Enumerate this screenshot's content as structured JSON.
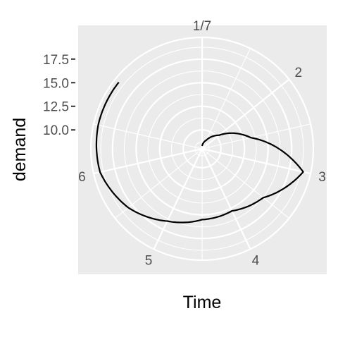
{
  "chart_data": {
    "type": "line",
    "coordinate_system": "polar",
    "title": "",
    "xlabel": "Time",
    "ylabel": "demand",
    "x_range": [
      1,
      8
    ],
    "x_ticks": [
      {
        "value": 1,
        "label": "1/7"
      },
      {
        "value": 2,
        "label": "2"
      },
      {
        "value": 3,
        "label": "3"
      },
      {
        "value": 4,
        "label": "4"
      },
      {
        "value": 5,
        "label": "5"
      },
      {
        "value": 6,
        "label": "6"
      }
    ],
    "y_range": [
      8.0,
      19.8
    ],
    "y_ticks": [
      {
        "value": 10.0,
        "label": "10.0"
      },
      {
        "value": 12.5,
        "label": "12.5"
      },
      {
        "value": 15.0,
        "label": "15.0"
      },
      {
        "value": 17.5,
        "label": "17.5"
      }
    ],
    "grid": true,
    "series": [
      {
        "color": "#000000",
        "points": [
          {
            "x": 1,
            "y": 8.3
          },
          {
            "x": 1.5,
            "y": 9.0
          },
          {
            "x": 2,
            "y": 10.3
          },
          {
            "x": 2.5,
            "y": 13.3
          },
          {
            "x": 3,
            "y": 19.0
          },
          {
            "x": 3.5,
            "y": 16.3
          },
          {
            "x": 4,
            "y": 15.3
          },
          {
            "x": 4.5,
            "y": 15.5
          },
          {
            "x": 5,
            "y": 16.5
          },
          {
            "x": 5.5,
            "y": 18.0
          },
          {
            "x": 6,
            "y": 19.1
          },
          {
            "x": 6.5,
            "y": 19.3
          },
          {
            "x": 7,
            "y": 19.3
          }
        ]
      }
    ]
  }
}
